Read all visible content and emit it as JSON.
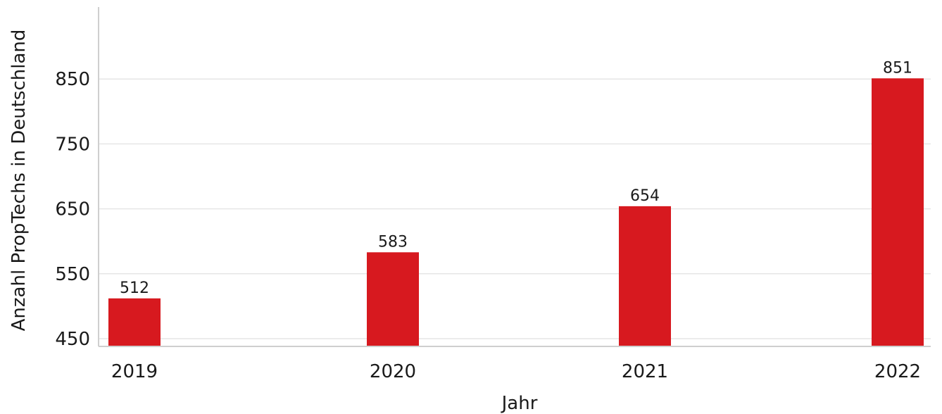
{
  "chart_data": {
    "type": "bar",
    "categories": [
      "2019",
      "2020",
      "2021",
      "2022"
    ],
    "values": [
      512,
      583,
      654,
      851
    ],
    "title": "",
    "xlabel": "Jahr",
    "ylabel": "Anzahl PropTechs in Deutschland",
    "ylim": [
      438,
      950
    ],
    "yticks": [
      450,
      550,
      650,
      750,
      850
    ],
    "grid": true,
    "bar_color": "#d7191f"
  }
}
